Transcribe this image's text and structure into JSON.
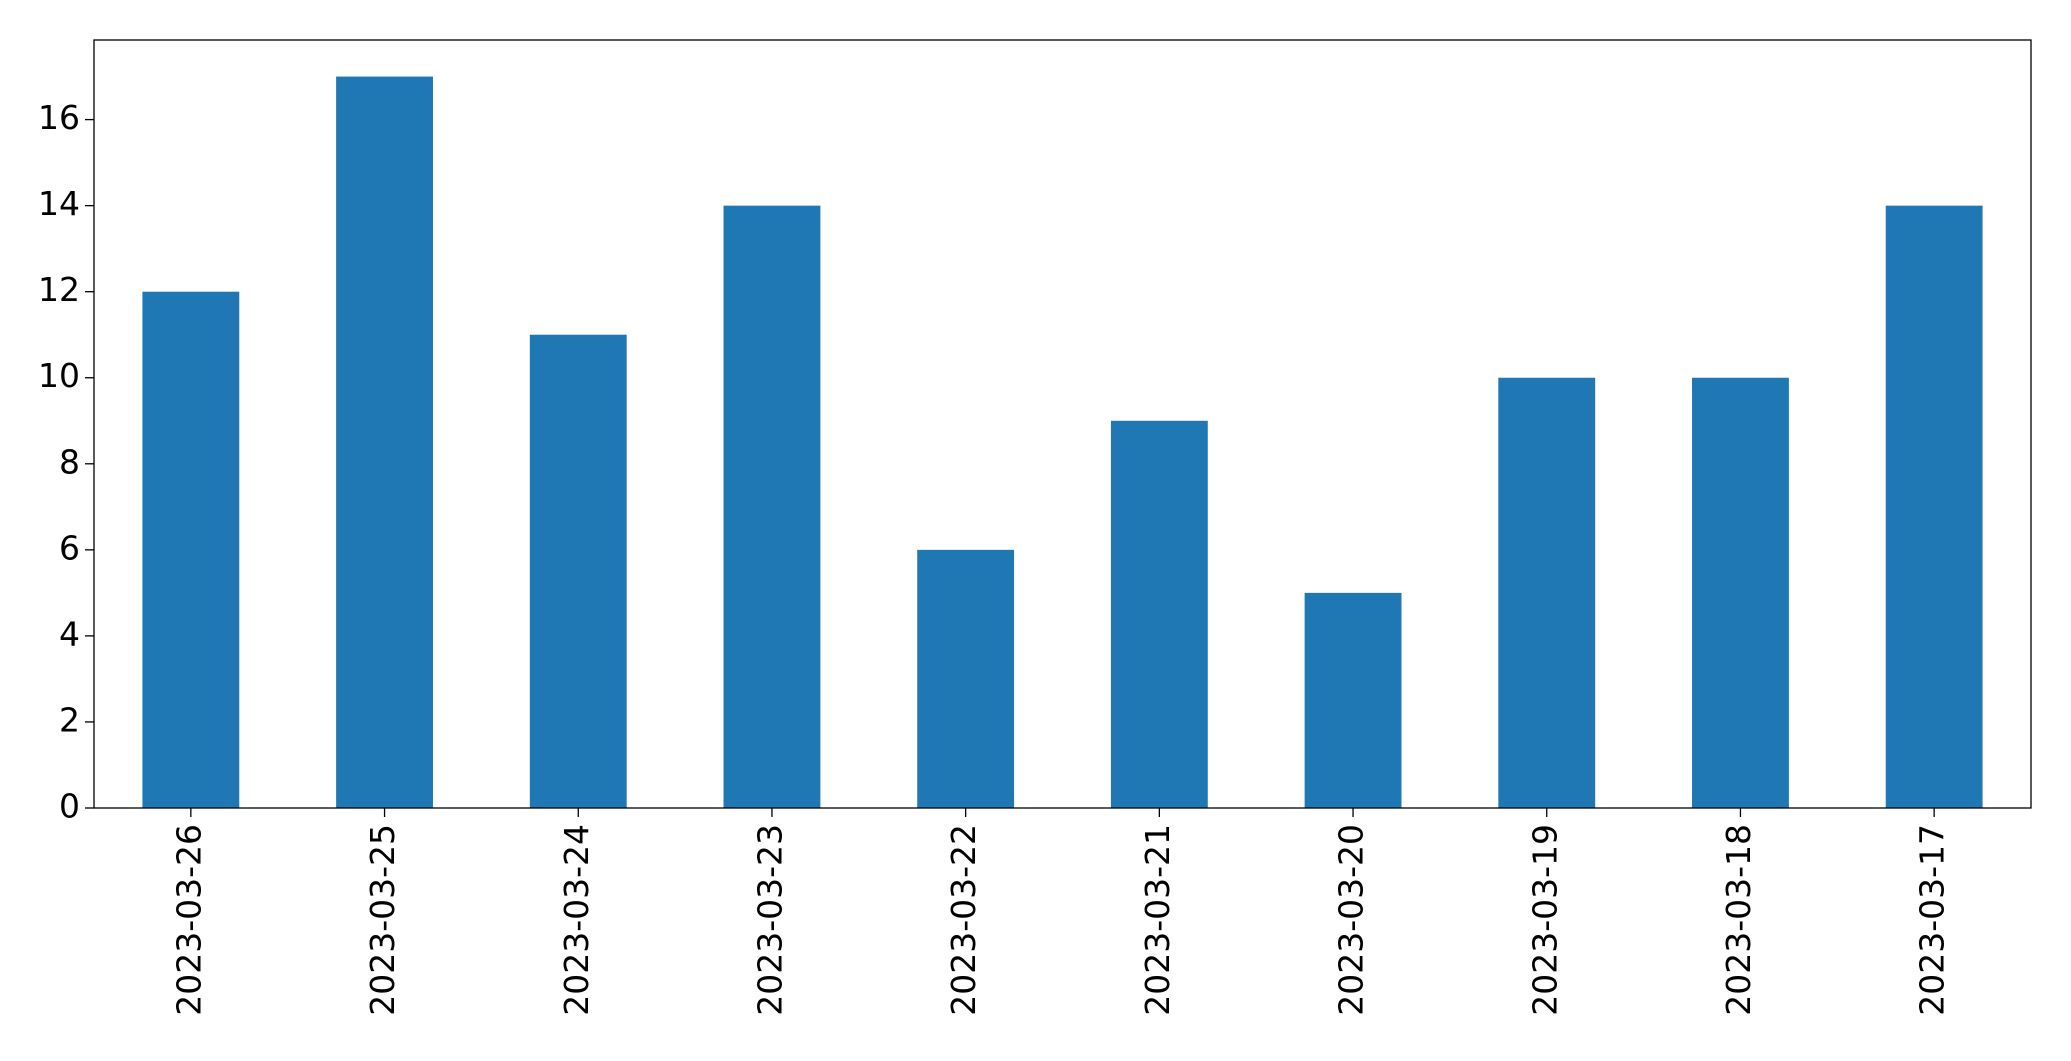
{
  "chart_data": {
    "type": "bar",
    "categories": [
      "2023-03-26",
      "2023-03-25",
      "2023-03-24",
      "2023-03-23",
      "2023-03-22",
      "2023-03-21",
      "2023-03-20",
      "2023-03-19",
      "2023-03-18",
      "2023-03-17"
    ],
    "values": [
      12,
      17,
      11,
      14,
      6,
      9,
      5,
      10,
      10,
      14
    ],
    "color": "#1f77b4",
    "ylim": [
      0,
      17.85
    ],
    "yticks": [
      0,
      2,
      4,
      6,
      8,
      10,
      12,
      14,
      16
    ],
    "grid": false
  }
}
